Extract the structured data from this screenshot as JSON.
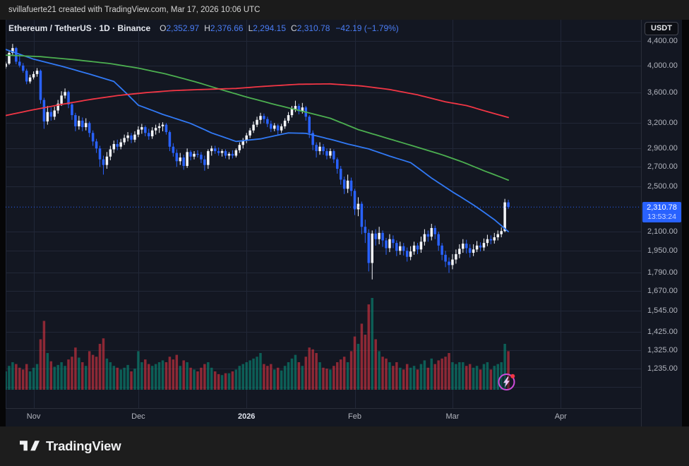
{
  "attribution": {
    "text": "svillafuerte21 created with TradingView.com, Mar 17, 2026 10:06 UTC"
  },
  "branding": {
    "logo_text": "TradingView"
  },
  "header": {
    "symbol_title": "Ethereum / TetherUS · 1D · Binance",
    "ohlc": {
      "o_label": "O",
      "o": "2,352.97",
      "h_label": "H",
      "h": "2,376.66",
      "l_label": "L",
      "l": "2,294.15",
      "c_label": "C",
      "c": "2,310.78",
      "change": "−42.19 (−1.79%)"
    }
  },
  "price_scale": {
    "currency_button": "USDT",
    "labels": [
      "4,400.00",
      "4,000.00",
      "3,600.00",
      "3,200.00",
      "2,900.00",
      "2,700.00",
      "2,500.00",
      "2,100.00",
      "1,950.00",
      "1,790.00",
      "1,670.00",
      "1,545.00",
      "1,425.00",
      "1,325.00",
      "1,235.00"
    ],
    "prices": [
      4400,
      4000,
      3600,
      3200,
      2900,
      2700,
      2500,
      2100,
      1950,
      1790,
      1670,
      1545,
      1425,
      1325,
      1235
    ],
    "gridline_only_prices": [
      1150
    ],
    "last_price": {
      "value": 2310.78,
      "display": "2,310.78",
      "countdown": "13:53:24"
    }
  },
  "time_scale": {
    "ticks": [
      {
        "label": "Nov",
        "index": 8,
        "bold": false
      },
      {
        "label": "Dec",
        "index": 38,
        "bold": false
      },
      {
        "label": "2026",
        "index": 69,
        "bold": true
      },
      {
        "label": "Feb",
        "index": 100,
        "bold": false
      },
      {
        "label": "Mar",
        "index": 128,
        "bold": false
      },
      {
        "label": "Apr",
        "index": 159,
        "bold": false
      }
    ]
  },
  "colors": {
    "background": "#131722",
    "grid": "#212737",
    "axis_border": "#2a2e39",
    "axis_text": "#b2b5be",
    "candle_up": "#f4f6fa",
    "candle_down": "#2962ff",
    "vol_up": "rgba(8,153,129,0.55)",
    "vol_down": "rgba(242,54,69,0.55)",
    "ma_blue": "#3179f5",
    "ma_green": "#4caf50",
    "ma_red": "#f23645",
    "accent": "#2962ff",
    "flash_ring": "#cf4bdc",
    "flash_bolt": "#e9c8f4",
    "flash_dot": "#f23645"
  },
  "chart_data": {
    "type": "candlestick",
    "symbol": "Ethereum / TetherUS",
    "exchange": "Binance",
    "interval": "1D",
    "currency": "USDT",
    "scale": "logarithmic",
    "legend_position": "top-left",
    "grid": true,
    "start_date": "2025-10-24",
    "end_date": "2026-03-17",
    "ylim": [
      1180,
      4450
    ],
    "y_ticks": [
      4400,
      4000,
      3600,
      3200,
      2900,
      2700,
      2500,
      2100,
      1950,
      1790,
      1670,
      1545,
      1425,
      1325,
      1235
    ],
    "x_tick_labels": [
      "Nov",
      "Dec",
      "2026",
      "Feb",
      "Mar",
      "Apr"
    ],
    "last_price": 2310.78,
    "candles_format": [
      "open",
      "high",
      "low",
      "close",
      "relative_volume"
    ],
    "candles": [
      [
        3980,
        4060,
        3950,
        4030,
        0.2
      ],
      [
        4030,
        4230,
        4010,
        4200,
        0.26
      ],
      [
        4200,
        4350,
        4170,
        4280,
        0.3
      ],
      [
        4280,
        4300,
        4020,
        4060,
        0.28
      ],
      [
        4060,
        4170,
        3970,
        4000,
        0.24
      ],
      [
        4000,
        4040,
        3890,
        3920,
        0.22
      ],
      [
        3920,
        3950,
        3720,
        3760,
        0.28
      ],
      [
        3760,
        3860,
        3730,
        3820,
        0.2
      ],
      [
        3820,
        3910,
        3790,
        3870,
        0.24
      ],
      [
        3870,
        3960,
        3830,
        3920,
        0.28
      ],
      [
        3920,
        3940,
        3450,
        3500,
        0.55
      ],
      [
        3500,
        3530,
        3130,
        3220,
        0.75
      ],
      [
        3220,
        3420,
        3180,
        3340,
        0.4
      ],
      [
        3340,
        3400,
        3230,
        3280,
        0.31
      ],
      [
        3280,
        3410,
        3240,
        3360,
        0.25
      ],
      [
        3360,
        3500,
        3320,
        3450,
        0.27
      ],
      [
        3450,
        3620,
        3420,
        3560,
        0.3
      ],
      [
        3560,
        3660,
        3520,
        3610,
        0.26
      ],
      [
        3610,
        3630,
        3390,
        3440,
        0.33
      ],
      [
        3440,
        3470,
        3240,
        3300,
        0.36
      ],
      [
        3300,
        3330,
        3100,
        3160,
        0.46
      ],
      [
        3160,
        3290,
        3120,
        3230,
        0.35
      ],
      [
        3230,
        3270,
        3100,
        3150,
        0.3
      ],
      [
        3150,
        3260,
        3110,
        3200,
        0.26
      ],
      [
        3200,
        3220,
        3030,
        3080,
        0.42
      ],
      [
        3080,
        3110,
        2930,
        2980,
        0.38
      ],
      [
        2980,
        3010,
        2850,
        2900,
        0.36
      ],
      [
        2900,
        2930,
        2700,
        2780,
        0.5
      ],
      [
        2780,
        2820,
        2620,
        2720,
        0.56
      ],
      [
        2720,
        2860,
        2680,
        2810,
        0.34
      ],
      [
        2810,
        2930,
        2770,
        2890,
        0.3
      ],
      [
        2890,
        2990,
        2850,
        2950,
        0.26
      ],
      [
        2950,
        3000,
        2880,
        2920,
        0.24
      ],
      [
        2920,
        3010,
        2890,
        2970,
        0.22
      ],
      [
        2970,
        3060,
        2940,
        3020,
        0.24
      ],
      [
        3020,
        3090,
        2980,
        3050,
        0.27
      ],
      [
        3050,
        3080,
        2960,
        3000,
        0.2
      ],
      [
        3000,
        3100,
        2970,
        3060,
        0.23
      ],
      [
        3060,
        3160,
        3030,
        3120,
        0.42
      ],
      [
        3120,
        3190,
        3070,
        3150,
        0.3
      ],
      [
        3150,
        3170,
        3040,
        3080,
        0.33
      ],
      [
        3080,
        3130,
        3000,
        3040,
        0.28
      ],
      [
        3040,
        3150,
        3010,
        3110,
        0.26
      ],
      [
        3110,
        3180,
        3060,
        3140,
        0.28
      ],
      [
        3140,
        3200,
        3080,
        3160,
        0.3
      ],
      [
        3160,
        3210,
        3100,
        3180,
        0.32
      ],
      [
        3180,
        3200,
        3060,
        3090,
        0.3
      ],
      [
        3090,
        3110,
        2870,
        2920,
        0.36
      ],
      [
        2920,
        2960,
        2810,
        2850,
        0.33
      ],
      [
        2850,
        2890,
        2700,
        2760,
        0.38
      ],
      [
        2760,
        2850,
        2720,
        2800,
        0.26
      ],
      [
        2800,
        2830,
        2670,
        2710,
        0.32
      ],
      [
        2710,
        2900,
        2690,
        2860,
        0.3
      ],
      [
        2860,
        2880,
        2770,
        2810,
        0.24
      ],
      [
        2810,
        2870,
        2780,
        2840,
        0.22
      ],
      [
        2840,
        2880,
        2800,
        2830,
        0.2
      ],
      [
        2830,
        2860,
        2740,
        2780,
        0.24
      ],
      [
        2780,
        2820,
        2660,
        2720,
        0.28
      ],
      [
        2720,
        2890,
        2680,
        2870,
        0.3
      ],
      [
        2870,
        2930,
        2820,
        2900,
        0.24
      ],
      [
        2900,
        2930,
        2840,
        2870,
        0.2
      ],
      [
        2870,
        2910,
        2820,
        2850,
        0.17
      ],
      [
        2850,
        2890,
        2810,
        2870,
        0.16
      ],
      [
        2870,
        2890,
        2790,
        2820,
        0.18
      ],
      [
        2820,
        2860,
        2780,
        2840,
        0.18
      ],
      [
        2840,
        2880,
        2790,
        2820,
        0.2
      ],
      [
        2820,
        2900,
        2800,
        2880,
        0.22
      ],
      [
        2880,
        2970,
        2850,
        2940,
        0.26
      ],
      [
        2940,
        3020,
        2900,
        2990,
        0.28
      ],
      [
        2990,
        3080,
        2960,
        3050,
        0.3
      ],
      [
        3050,
        3140,
        3020,
        3110,
        0.32
      ],
      [
        3110,
        3220,
        3080,
        3180,
        0.34
      ],
      [
        3180,
        3280,
        3150,
        3240,
        0.36
      ],
      [
        3240,
        3330,
        3190,
        3290,
        0.4
      ],
      [
        3290,
        3320,
        3200,
        3250,
        0.28
      ],
      [
        3250,
        3280,
        3150,
        3190,
        0.26
      ],
      [
        3190,
        3230,
        3090,
        3130,
        0.28
      ],
      [
        3130,
        3200,
        3100,
        3170,
        0.22
      ],
      [
        3170,
        3190,
        3060,
        3110,
        0.24
      ],
      [
        3110,
        3190,
        3080,
        3160,
        0.21
      ],
      [
        3160,
        3260,
        3130,
        3230,
        0.26
      ],
      [
        3230,
        3340,
        3200,
        3300,
        0.3
      ],
      [
        3300,
        3420,
        3270,
        3380,
        0.34
      ],
      [
        3380,
        3490,
        3340,
        3420,
        0.38
      ],
      [
        3420,
        3450,
        3310,
        3350,
        0.3
      ],
      [
        3350,
        3460,
        3320,
        3400,
        0.26
      ],
      [
        3400,
        3420,
        3230,
        3280,
        0.36
      ],
      [
        3280,
        3300,
        3020,
        3080,
        0.46
      ],
      [
        3080,
        3110,
        2880,
        2940,
        0.44
      ],
      [
        2940,
        2970,
        2800,
        2870,
        0.4
      ],
      [
        2870,
        2970,
        2830,
        2920,
        0.3
      ],
      [
        2920,
        2950,
        2830,
        2870,
        0.24
      ],
      [
        2870,
        2900,
        2780,
        2820,
        0.23
      ],
      [
        2820,
        2900,
        2790,
        2870,
        0.22
      ],
      [
        2870,
        2890,
        2740,
        2780,
        0.26
      ],
      [
        2780,
        2800,
        2630,
        2680,
        0.3
      ],
      [
        2680,
        2710,
        2520,
        2570,
        0.33
      ],
      [
        2570,
        2600,
        2430,
        2480,
        0.36
      ],
      [
        2480,
        2620,
        2440,
        2560,
        0.3
      ],
      [
        2560,
        2590,
        2410,
        2460,
        0.42
      ],
      [
        2460,
        2480,
        2240,
        2290,
        0.58
      ],
      [
        2290,
        2400,
        2230,
        2340,
        0.5
      ],
      [
        2340,
        2360,
        2080,
        2140,
        0.72
      ],
      [
        2140,
        2200,
        2010,
        2090,
        0.6
      ],
      [
        2090,
        2120,
        1800,
        1860,
        0.93
      ],
      [
        1860,
        2110,
        1745,
        2085,
        1.0
      ],
      [
        2085,
        2120,
        1990,
        2040,
        0.55
      ],
      [
        2040,
        2140,
        2000,
        2090,
        0.42
      ],
      [
        2090,
        2110,
        1980,
        2030,
        0.36
      ],
      [
        2030,
        2050,
        1920,
        1970,
        0.34
      ],
      [
        1970,
        2080,
        1940,
        2040,
        0.3
      ],
      [
        2040,
        2070,
        1970,
        2010,
        0.26
      ],
      [
        2010,
        2030,
        1910,
        1950,
        0.3
      ],
      [
        1950,
        2020,
        1920,
        1985,
        0.24
      ],
      [
        1985,
        2010,
        1915,
        1950,
        0.22
      ],
      [
        1950,
        1975,
        1870,
        1905,
        0.28
      ],
      [
        1905,
        1985,
        1880,
        1945,
        0.24
      ],
      [
        1945,
        2020,
        1920,
        1990,
        0.26
      ],
      [
        1990,
        2010,
        1925,
        1960,
        0.22
      ],
      [
        1960,
        2060,
        1935,
        2020,
        0.28
      ],
      [
        2020,
        2120,
        1990,
        2080,
        0.32
      ],
      [
        2080,
        2110,
        2020,
        2060,
        0.24
      ],
      [
        2060,
        2165,
        2030,
        2130,
        0.34
      ],
      [
        2130,
        2150,
        2040,
        2080,
        0.28
      ],
      [
        2080,
        2100,
        1950,
        1990,
        0.32
      ],
      [
        1990,
        2010,
        1880,
        1920,
        0.34
      ],
      [
        1920,
        1950,
        1830,
        1870,
        0.36
      ],
      [
        1870,
        1900,
        1790,
        1845,
        0.4
      ],
      [
        1845,
        1925,
        1815,
        1885,
        0.3
      ],
      [
        1885,
        1960,
        1855,
        1925,
        0.28
      ],
      [
        1925,
        2000,
        1895,
        1965,
        0.3
      ],
      [
        1965,
        2040,
        1935,
        2005,
        0.3
      ],
      [
        2005,
        2035,
        1930,
        1970,
        0.26
      ],
      [
        1970,
        2000,
        1900,
        1935,
        0.28
      ],
      [
        1935,
        2000,
        1910,
        1960,
        0.24
      ],
      [
        1960,
        2025,
        1940,
        1990,
        0.26
      ],
      [
        1990,
        2015,
        1945,
        1975,
        0.22
      ],
      [
        1975,
        2045,
        1950,
        2010,
        0.28
      ],
      [
        2010,
        2075,
        1985,
        2040,
        0.3
      ],
      [
        2040,
        2070,
        2000,
        2030,
        0.22
      ],
      [
        2030,
        2090,
        2005,
        2055,
        0.26
      ],
      [
        2055,
        2110,
        2030,
        2080,
        0.28
      ],
      [
        2080,
        2135,
        2055,
        2105,
        0.3
      ],
      [
        2105,
        2385,
        2095,
        2352.97,
        0.5
      ],
      [
        2352.97,
        2376.66,
        2294.15,
        2310.78,
        0.42
      ]
    ],
    "overlays": [
      {
        "name": "ma-blue",
        "color": "#3179f5",
        "points": [
          [
            0,
            4258
          ],
          [
            8,
            4100
          ],
          [
            16,
            3990
          ],
          [
            24,
            3870
          ],
          [
            31,
            3760
          ],
          [
            38,
            3430
          ],
          [
            45,
            3310
          ],
          [
            53,
            3195
          ],
          [
            59,
            3080
          ],
          [
            66,
            2980
          ],
          [
            73,
            3010
          ],
          [
            81,
            3080
          ],
          [
            86,
            3075
          ],
          [
            90,
            3035
          ],
          [
            94,
            2995
          ],
          [
            98,
            2950
          ],
          [
            104,
            2895
          ],
          [
            110,
            2815
          ],
          [
            116,
            2745
          ],
          [
            122,
            2585
          ],
          [
            128,
            2450
          ],
          [
            134,
            2330
          ],
          [
            140,
            2200
          ],
          [
            144,
            2100
          ]
        ]
      },
      {
        "name": "ma-green",
        "color": "#4caf50",
        "points": [
          [
            0,
            4165
          ],
          [
            10,
            4140
          ],
          [
            20,
            4090
          ],
          [
            30,
            4030
          ],
          [
            38,
            3960
          ],
          [
            46,
            3870
          ],
          [
            54,
            3760
          ],
          [
            62,
            3640
          ],
          [
            69,
            3540
          ],
          [
            77,
            3440
          ],
          [
            85,
            3350
          ],
          [
            93,
            3260
          ],
          [
            101,
            3120
          ],
          [
            109,
            3020
          ],
          [
            117,
            2925
          ],
          [
            125,
            2830
          ],
          [
            131,
            2750
          ],
          [
            137,
            2660
          ],
          [
            144,
            2565
          ]
        ]
      },
      {
        "name": "ma-red",
        "color": "#f23645",
        "points": [
          [
            0,
            3295
          ],
          [
            8,
            3370
          ],
          [
            16,
            3440
          ],
          [
            24,
            3505
          ],
          [
            32,
            3560
          ],
          [
            40,
            3600
          ],
          [
            48,
            3630
          ],
          [
            56,
            3645
          ],
          [
            66,
            3660
          ],
          [
            74,
            3690
          ],
          [
            84,
            3720
          ],
          [
            93,
            3725
          ],
          [
            102,
            3695
          ],
          [
            110,
            3645
          ],
          [
            118,
            3570
          ],
          [
            126,
            3475
          ],
          [
            132,
            3425
          ],
          [
            138,
            3345
          ],
          [
            144,
            3270
          ]
        ]
      }
    ]
  }
}
